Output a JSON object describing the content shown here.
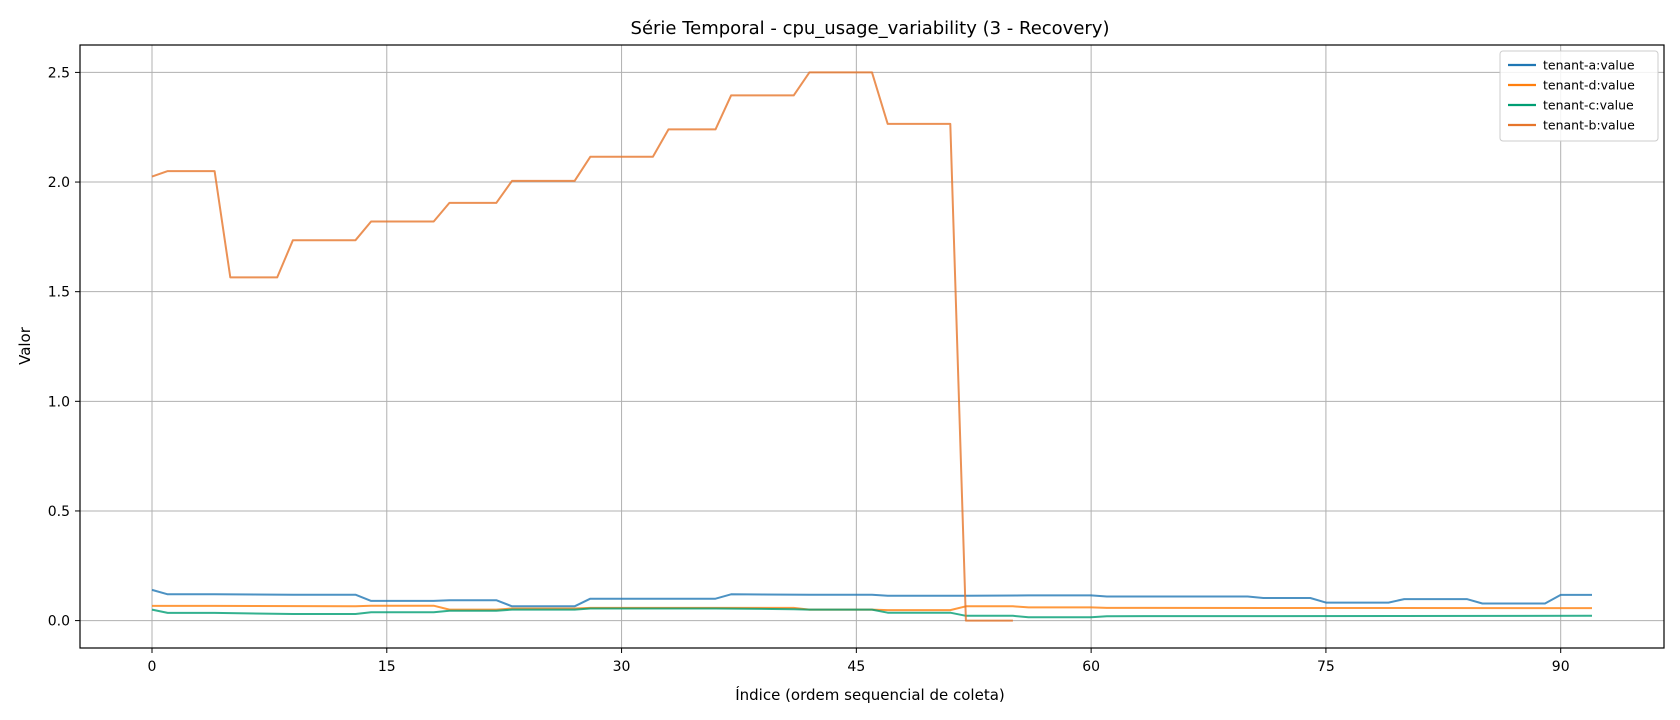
{
  "chart_data": {
    "type": "line",
    "title": "Série Temporal - cpu_usage_variability (3 - Recovery)",
    "xlabel": "Índice (ordem sequencial de coleta)",
    "ylabel": "Valor",
    "xlim": [
      -4.6,
      96.6
    ],
    "ylim": [
      -0.125,
      2.625
    ],
    "xticks": [
      0,
      15,
      30,
      45,
      60,
      75,
      90
    ],
    "xtick_labels": [
      "0",
      "15",
      "30",
      "45",
      "60",
      "75",
      "90"
    ],
    "yticks": [
      0.0,
      0.5,
      1.0,
      1.5,
      2.0,
      2.5
    ],
    "ytick_labels": [
      "0.0",
      "0.5",
      "1.0",
      "1.5",
      "2.0",
      "2.5"
    ],
    "grid": true,
    "legend_position": "top-right",
    "series": [
      {
        "name": "tenant-a:value",
        "color": "#1f77b4",
        "x": [
          0,
          1,
          4,
          9,
          13,
          14,
          18,
          19,
          22,
          23,
          27,
          28,
          36,
          37,
          42,
          46,
          47,
          52,
          56,
          60,
          61,
          70,
          71,
          74,
          75,
          79,
          80,
          84,
          85,
          89,
          90,
          92
        ],
        "values": [
          0.14,
          0.12,
          0.12,
          0.118,
          0.118,
          0.09,
          0.09,
          0.093,
          0.093,
          0.065,
          0.065,
          0.1,
          0.1,
          0.12,
          0.118,
          0.118,
          0.113,
          0.113,
          0.115,
          0.115,
          0.11,
          0.11,
          0.103,
          0.103,
          0.082,
          0.082,
          0.098,
          0.098,
          0.078,
          0.078,
          0.117,
          0.117
        ]
      },
      {
        "name": "tenant-d:value",
        "color": "#ff7f0e",
        "x": [
          0,
          4,
          13,
          14,
          18,
          19,
          22,
          23,
          27,
          28,
          36,
          41,
          42,
          46,
          47,
          51,
          52,
          55,
          56,
          60,
          61,
          92
        ],
        "values": [
          0.067,
          0.067,
          0.065,
          0.068,
          0.068,
          0.05,
          0.05,
          0.055,
          0.055,
          0.058,
          0.058,
          0.058,
          0.05,
          0.05,
          0.048,
          0.048,
          0.065,
          0.065,
          0.06,
          0.06,
          0.058,
          0.057
        ]
      },
      {
        "name": "tenant-c:value",
        "color": "#009e73",
        "x": [
          0,
          1,
          4,
          9,
          13,
          14,
          18,
          19,
          22,
          23,
          27,
          28,
          36,
          41,
          42,
          46,
          47,
          51,
          52,
          55,
          56,
          60,
          61,
          92
        ],
        "values": [
          0.05,
          0.035,
          0.035,
          0.03,
          0.03,
          0.038,
          0.038,
          0.045,
          0.045,
          0.05,
          0.05,
          0.055,
          0.055,
          0.052,
          0.05,
          0.05,
          0.036,
          0.036,
          0.022,
          0.022,
          0.015,
          0.015,
          0.02,
          0.022
        ]
      },
      {
        "name": "tenant-b:value",
        "color": "#e6752b",
        "x": [
          0,
          1,
          4,
          5,
          8,
          9,
          13,
          14,
          18,
          19,
          22,
          23,
          27,
          28,
          32,
          33,
          36,
          37,
          41,
          42,
          46,
          47,
          51,
          52,
          55
        ],
        "values": [
          2.025,
          2.05,
          2.05,
          1.565,
          1.565,
          1.735,
          1.735,
          1.82,
          1.82,
          1.905,
          1.905,
          2.005,
          2.005,
          2.115,
          2.115,
          2.24,
          2.24,
          2.395,
          2.395,
          2.5,
          2.5,
          2.265,
          2.265,
          0.0,
          0.0
        ]
      }
    ]
  }
}
